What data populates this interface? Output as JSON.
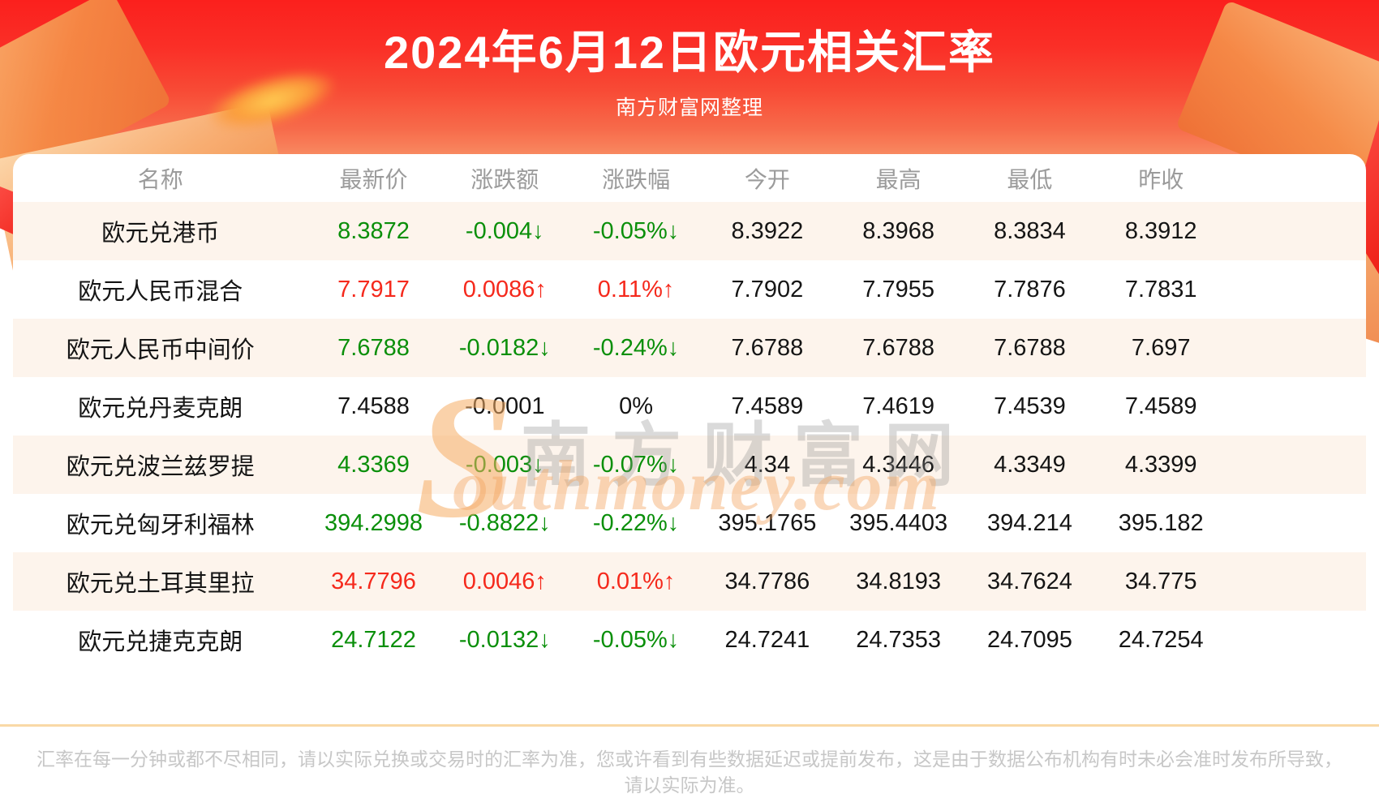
{
  "page": {
    "title": "2024年6月12日欧元相关汇率",
    "subtitle": "南方财富网整理"
  },
  "watermark": {
    "s_glyph": "S",
    "cn_text": "南方财富网",
    "en_text": "outhmoney.com"
  },
  "chart_data": {
    "type": "table",
    "title": "2024年6月12日欧元相关汇率",
    "subtitle": "南方财富网整理",
    "columns": [
      "名称",
      "最新价",
      "涨跌额",
      "涨跌幅",
      "今开",
      "最高",
      "最低",
      "昨收"
    ],
    "rows": [
      [
        "欧元兑港币",
        "8.3872",
        "-0.004↓",
        "-0.05%↓",
        "8.3922",
        "8.3968",
        "8.3834",
        "8.3912"
      ],
      [
        "欧元人民币混合",
        "7.7917",
        "0.0086↑",
        "0.11%↑",
        "7.7902",
        "7.7955",
        "7.7876",
        "7.7831"
      ],
      [
        "欧元人民币中间价",
        "7.6788",
        "-0.0182↓",
        "-0.24%↓",
        "7.6788",
        "7.6788",
        "7.6788",
        "7.697"
      ],
      [
        "欧元兑丹麦克朗",
        "7.4588",
        "-0.0001",
        "0%",
        "7.4589",
        "7.4619",
        "7.4539",
        "7.4589"
      ],
      [
        "欧元兑波兰兹罗提",
        "4.3369",
        "-0.003↓",
        "-0.07%↓",
        "4.34",
        "4.3446",
        "4.3349",
        "4.3399"
      ],
      [
        "欧元兑匈牙利福林",
        "394.2998",
        "-0.8822↓",
        "-0.22%↓",
        "395.1765",
        "395.4403",
        "394.214",
        "395.182"
      ],
      [
        "欧元兑土耳其里拉",
        "34.7796",
        "0.0046↑",
        "0.01%↑",
        "34.7786",
        "34.8193",
        "34.7624",
        "34.775"
      ],
      [
        "欧元兑捷克克朗",
        "24.7122",
        "-0.0132↓",
        "-0.05%↓",
        "24.7241",
        "24.7353",
        "24.7095",
        "24.7254"
      ]
    ],
    "row_directions": [
      "down",
      "up",
      "down",
      "flat",
      "down",
      "down",
      "up",
      "down"
    ],
    "colors": {
      "up": "#f5291c",
      "down": "#0a8f0a",
      "flat": "#151515",
      "zebra_row": "#fdf4ec",
      "header_text": "#9b9b9b",
      "hero_red": "#fb201d",
      "divider": "#f9d9a6"
    }
  },
  "footer": {
    "line1": "汇率在每一分钟或都不尽相同，请以实际兑换或交易时的汇率为准，您或许看到有些数据延迟或提前发布，这是由于数据公布机构有时未必会准时发布所导致，",
    "line2": "请以实际为准。"
  }
}
